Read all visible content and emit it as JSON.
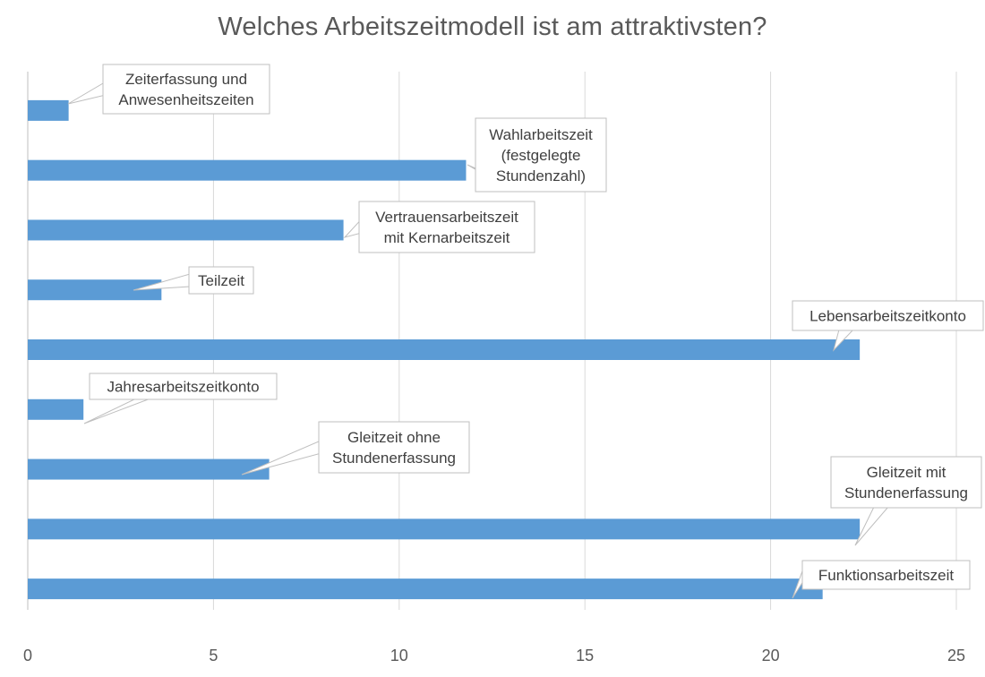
{
  "chart_data": {
    "type": "bar",
    "orientation": "horizontal",
    "title": "Welches Arbeitszeitmodell ist am attraktivsten?",
    "xlim": [
      0,
      25
    ],
    "xticks": [
      0,
      5,
      10,
      15,
      20,
      25
    ],
    "grid": true,
    "legend": "none",
    "bar_color": "#5b9bd5",
    "categories": [
      "Zeiterfassung und Anwesenheitszeiten",
      "Wahlarbeitszeit (festgelegte Stundenzahl)",
      "Vertrauensarbeitszeit mit Kernarbeitszeit",
      "Teilzeit",
      "Lebensarbeitszeitkonto",
      "Jahresarbeitszeitkonto",
      "Gleitzeit ohne Stundenerfassung",
      "Gleitzeit mit Stundenerfassung",
      "Funktionsarbeitszeit"
    ],
    "values": [
      1.1,
      11.8,
      8.5,
      3.6,
      22.4,
      1.5,
      6.5,
      22.4,
      21.4
    ],
    "data_labels": [
      [
        "Zeiterfassung und",
        "Anwesenheitszeiten"
      ],
      [
        "Wahlarbeitszeit",
        "(festgelegte",
        "Stundenzahl)"
      ],
      [
        "Vertrauensarbeitszeit",
        "mit Kernarbeitszeit"
      ],
      [
        "Teilzeit"
      ],
      [
        "Lebensarbeitszeitkonto"
      ],
      [
        "Jahresarbeitszeitkonto"
      ],
      [
        "Gleitzeit ohne",
        "Stundenerfassung"
      ],
      [
        "Gleitzeit mit",
        "Stundenerfassung"
      ],
      [
        "Funktionsarbeitszeit"
      ]
    ]
  }
}
